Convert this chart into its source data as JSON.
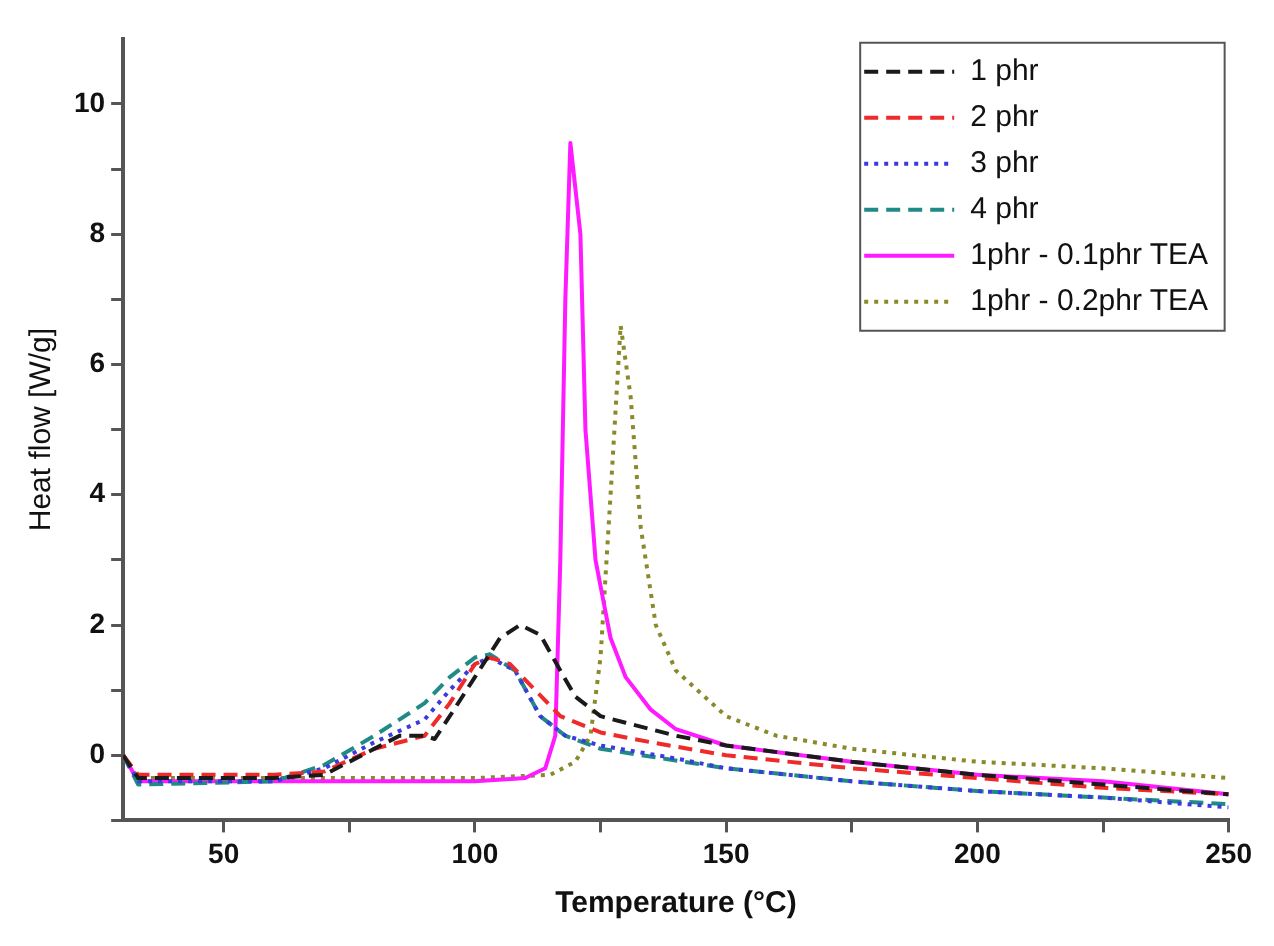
{
  "chart_data": {
    "type": "line",
    "xlabel": "Temperature (°C)",
    "ylabel": "Heat flow [W/g]",
    "xlim": [
      30,
      250
    ],
    "xticks": [
      {
        "value": 50,
        "label": "50"
      },
      {
        "value": 75,
        "label": null
      },
      {
        "value": 100,
        "label": "100"
      },
      {
        "value": 125,
        "label": null
      },
      {
        "value": 150,
        "label": "150"
      },
      {
        "value": 175,
        "label": null
      },
      {
        "value": 200,
        "label": "200"
      },
      {
        "value": 225,
        "label": null
      },
      {
        "value": 250,
        "label": "250"
      }
    ],
    "ylim": [
      -1,
      11
    ],
    "yticks": [
      {
        "value": -1,
        "label": null
      },
      0,
      {
        "value": 1,
        "label": null
      },
      2,
      {
        "value": 3,
        "label": null
      },
      4,
      {
        "value": 5,
        "label": null
      },
      6,
      {
        "value": 7,
        "label": null
      },
      8,
      {
        "value": 9,
        "label": null
      },
      10
    ],
    "grid": false,
    "legend": "top right",
    "marker": "none",
    "series": [
      {
        "name": "1 phr",
        "color": "#1a1a1a",
        "line_style": "dashed",
        "x": [
          30,
          33,
          50,
          60,
          70,
          75,
          80,
          85,
          90,
          92,
          95,
          100,
          105,
          109,
          113,
          117,
          120,
          125,
          130,
          140,
          150,
          175,
          200,
          225,
          250
        ],
        "values": [
          0,
          -0.35,
          -0.35,
          -0.35,
          -0.3,
          -0.1,
          0.1,
          0.3,
          0.3,
          0.25,
          0.6,
          1.2,
          1.8,
          2.0,
          1.85,
          1.3,
          0.9,
          0.6,
          0.5,
          0.3,
          0.15,
          -0.1,
          -0.3,
          -0.45,
          -0.6
        ]
      },
      {
        "name": "2 phr",
        "color": "#ee2a2a",
        "line_style": "dashed",
        "x": [
          30,
          33,
          60,
          70,
          80,
          90,
          95,
          100,
          103,
          107,
          112,
          117,
          125,
          135,
          150,
          175,
          200,
          225,
          250
        ],
        "values": [
          0,
          -0.3,
          -0.3,
          -0.25,
          0.1,
          0.3,
          0.8,
          1.4,
          1.5,
          1.4,
          1.0,
          0.6,
          0.35,
          0.2,
          0.0,
          -0.2,
          -0.35,
          -0.5,
          -0.6
        ]
      },
      {
        "name": "3 phr",
        "color": "#3a3ae0",
        "line_style": "dotted",
        "x": [
          30,
          33,
          60,
          70,
          80,
          90,
          95,
          100,
          103,
          108,
          113,
          118,
          125,
          140,
          150,
          175,
          200,
          225,
          250
        ],
        "values": [
          0,
          -0.4,
          -0.4,
          -0.2,
          0.2,
          0.55,
          1.0,
          1.4,
          1.5,
          1.3,
          0.6,
          0.3,
          0.15,
          -0.05,
          -0.2,
          -0.4,
          -0.55,
          -0.65,
          -0.8
        ]
      },
      {
        "name": "4 phr",
        "color": "#1f8a86",
        "line_style": "dashed",
        "x": [
          30,
          33,
          60,
          70,
          80,
          90,
          95,
          100,
          103,
          108,
          113,
          118,
          125,
          150,
          175,
          200,
          225,
          250
        ],
        "values": [
          0,
          -0.45,
          -0.4,
          -0.15,
          0.3,
          0.8,
          1.2,
          1.5,
          1.55,
          1.3,
          0.6,
          0.3,
          0.1,
          -0.2,
          -0.4,
          -0.55,
          -0.65,
          -0.75
        ]
      },
      {
        "name": "1phr - 0.1phr TEA",
        "color": "#ff1aff",
        "line_style": "solid",
        "x": [
          30,
          33,
          60,
          100,
          110,
          114,
          116,
          117,
          118,
          119,
          121,
          122,
          124,
          127,
          130,
          135,
          140,
          150,
          175,
          200,
          225,
          250
        ],
        "values": [
          0,
          -0.4,
          -0.4,
          -0.4,
          -0.35,
          -0.2,
          0.3,
          3,
          7,
          9.4,
          8,
          5,
          3,
          1.8,
          1.2,
          0.7,
          0.4,
          0.15,
          -0.1,
          -0.3,
          -0.4,
          -0.6
        ]
      },
      {
        "name": "1phr - 0.2phr TEA",
        "color": "#8a8a2a",
        "line_style": "dotted",
        "x": [
          30,
          33,
          60,
          100,
          115,
          120,
          123,
          125,
          127,
          129,
          131,
          133,
          136,
          140,
          150,
          160,
          175,
          200,
          225,
          250
        ],
        "values": [
          0,
          -0.35,
          -0.35,
          -0.35,
          -0.3,
          -0.1,
          0.3,
          1.5,
          4,
          6.6,
          5.5,
          3.5,
          2,
          1.3,
          0.6,
          0.3,
          0.1,
          -0.1,
          -0.2,
          -0.35
        ]
      }
    ]
  }
}
